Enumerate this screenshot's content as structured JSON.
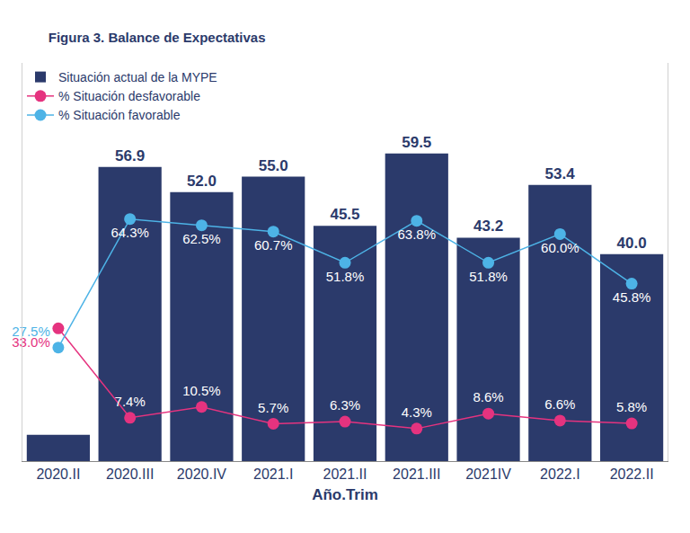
{
  "chart_data": {
    "type": "bar",
    "title": "Figura 3. Balance de Expectativas",
    "x_label": "Año.Trim",
    "categories": [
      "2020.II",
      "2020.III",
      "2020.IV",
      "2021.I",
      "2021.II",
      "2021.III",
      "2021IV",
      "2022.I",
      "2022.II"
    ],
    "series": [
      {
        "name": "Situación actual de la MYPE",
        "type": "bar",
        "color": "#2b3a6b",
        "values": [
          5.1,
          56.9,
          52.0,
          55.0,
          45.5,
          59.5,
          43.2,
          53.4,
          40.0
        ],
        "value_labels": [
          null,
          "56.9",
          "52.0",
          "55.0",
          "45.5",
          "59.5",
          "43.2",
          "53.4",
          "40.0"
        ]
      },
      {
        "name": "% Situación desfavorable",
        "type": "line",
        "axis": "y2",
        "color": "#e5337f",
        "marker": "circle",
        "values": [
          33.0,
          7.4,
          10.5,
          5.7,
          6.3,
          4.3,
          8.6,
          6.6,
          5.8
        ],
        "value_labels": [
          "33.0%",
          "7.4%",
          "10.5%",
          "5.7%",
          "6.3%",
          "4.3%",
          "8.6%",
          "6.6%",
          "5.8%"
        ]
      },
      {
        "name": "% Situación favorable",
        "type": "line",
        "axis": "y2",
        "color": "#4db3e6",
        "marker": "circle",
        "values": [
          27.5,
          64.3,
          62.5,
          60.7,
          51.8,
          63.8,
          51.8,
          60.0,
          45.8
        ],
        "value_labels": [
          "27.5%",
          "64.3%",
          "62.5%",
          "60.7%",
          "51.8%",
          "63.8%",
          "51.8%",
          "60.0%",
          "45.8%"
        ]
      }
    ],
    "ylim": [
      0,
      77
    ],
    "yticks": [],
    "y2lim": [
      -5,
      109
    ],
    "y2ticks": [],
    "data_labels": true,
    "tick_labels": "x",
    "legend": "top left",
    "grid": false
  }
}
